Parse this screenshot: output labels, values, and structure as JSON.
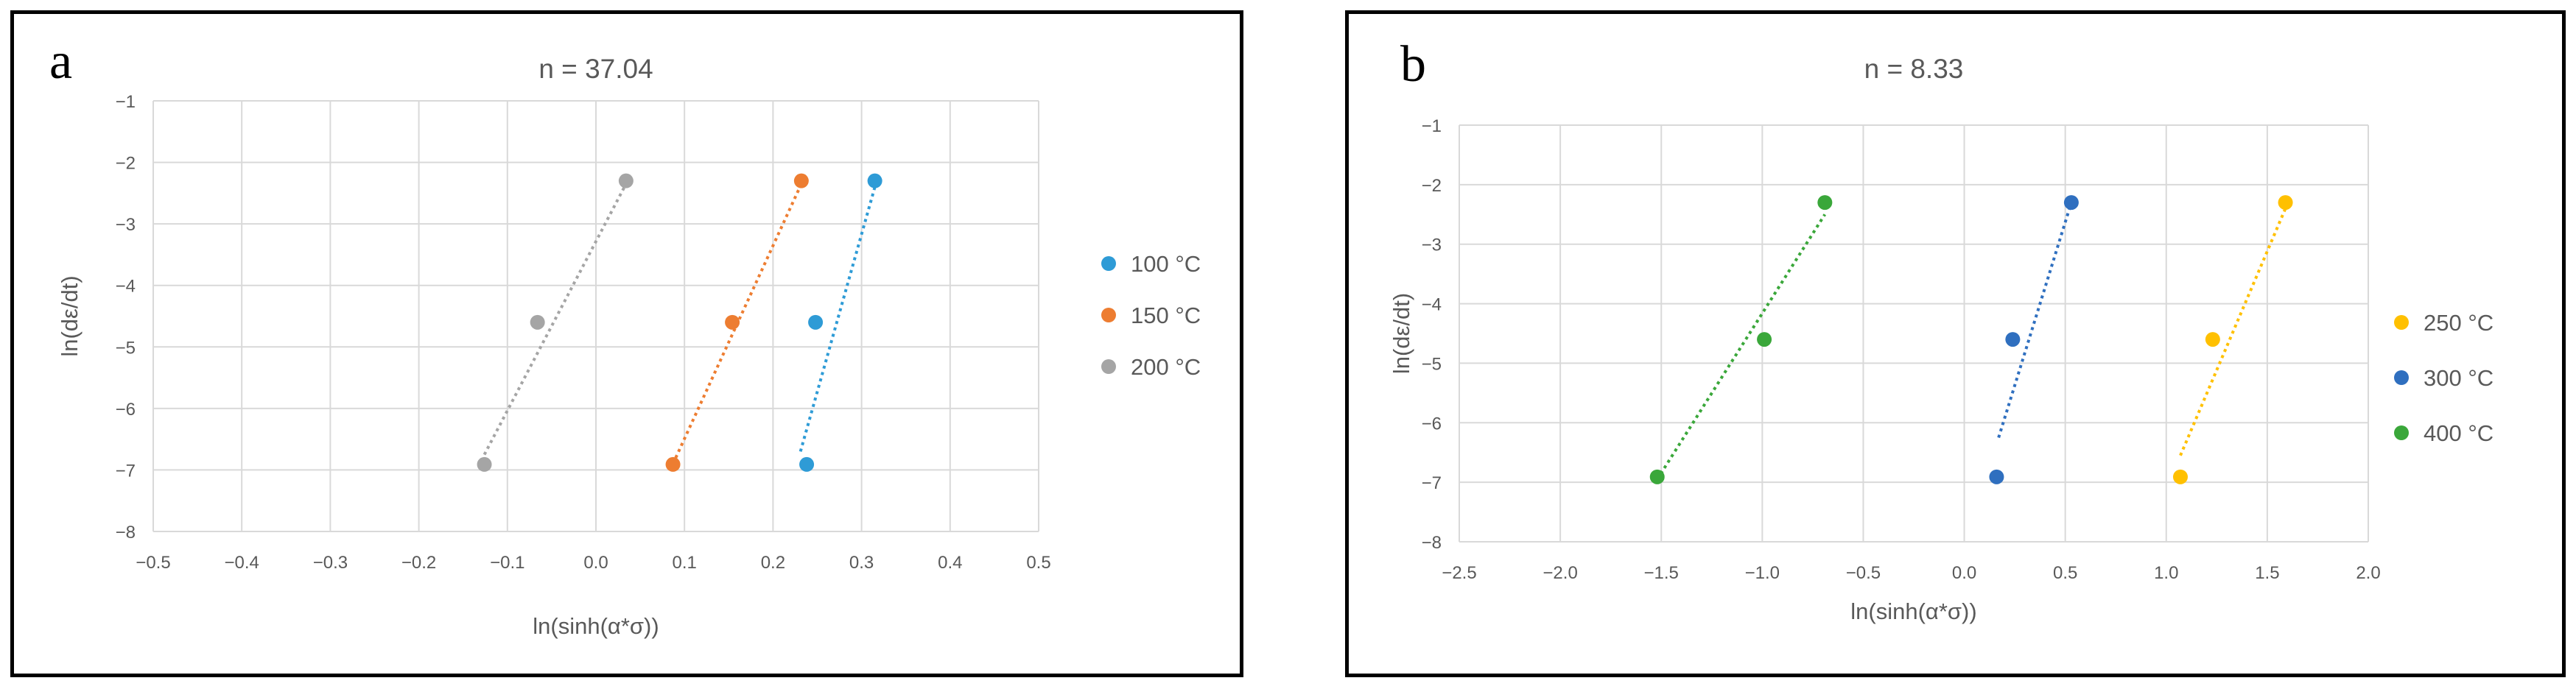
{
  "panels": [
    {
      "label": "a",
      "chart_data": {
        "type": "scatter",
        "title": "n = 37.04",
        "xlabel": "ln(sinh(α*σ))",
        "ylabel": "ln(dε/dt)",
        "xlim": [
          -0.5,
          0.5
        ],
        "ylim": [
          -8,
          -1
        ],
        "xticks": [
          -0.5,
          -0.4,
          -0.3,
          -0.2,
          -0.1,
          0.0,
          0.1,
          0.2,
          0.3,
          0.4,
          0.5
        ],
        "xtick_labels": [
          "−0.5",
          "−0.4",
          "−0.3",
          "−0.2",
          "−0.1",
          "0.0",
          "0.1",
          "0.2",
          "0.3",
          "0.4",
          "0.5"
        ],
        "yticks": [
          -8,
          -7,
          -6,
          -5,
          -4,
          -3,
          -2,
          -1
        ],
        "ytick_labels": [
          "−8",
          "−7",
          "−6",
          "−5",
          "−4",
          "−3",
          "−2",
          "−1"
        ],
        "grid": true,
        "legend_position": "right",
        "series": [
          {
            "name": "100 °C",
            "color": "#2e9bd6",
            "x": [
              0.238,
              0.248,
              0.315
            ],
            "y": [
              -6.91,
              -4.6,
              -2.3
            ],
            "trendline": {
              "x": [
                0.231,
                0.316
              ],
              "y": [
                -6.7,
                -2.35
              ]
            }
          },
          {
            "name": "150 °C",
            "color": "#ed7d31",
            "x": [
              0.087,
              0.154,
              0.232
            ],
            "y": [
              -6.91,
              -4.6,
              -2.3
            ],
            "trendline": {
              "x": [
                0.087,
                0.232
              ],
              "y": [
                -6.9,
                -2.35
              ]
            }
          },
          {
            "name": "200 °C",
            "color": "#a5a5a5",
            "x": [
              -0.126,
              -0.066,
              0.034
            ],
            "y": [
              -6.91,
              -4.6,
              -2.3
            ],
            "trendline": {
              "x": [
                -0.126,
                0.034
              ],
              "y": [
                -6.75,
                -2.35
              ]
            }
          }
        ]
      }
    },
    {
      "label": "b",
      "chart_data": {
        "type": "scatter",
        "title": "n = 8.33",
        "xlabel": "ln(sinh(α*σ))",
        "ylabel": "ln(dε/dt)",
        "xlim": [
          -2.5,
          2.0
        ],
        "ylim": [
          -8,
          -1
        ],
        "xticks": [
          -2.5,
          -2.0,
          -1.5,
          -1.0,
          -0.5,
          0.0,
          0.5,
          1.0,
          1.5,
          2.0
        ],
        "xtick_labels": [
          "−2.5",
          "−2.0",
          "−1.5",
          "−1.0",
          "−0.5",
          "0.0",
          "0.5",
          "1.0",
          "1.5",
          "2.0"
        ],
        "yticks": [
          -8,
          -7,
          -6,
          -5,
          -4,
          -3,
          -2,
          -1
        ],
        "ytick_labels": [
          "−8",
          "−7",
          "−6",
          "−5",
          "−4",
          "−3",
          "−2",
          "−1"
        ],
        "grid": true,
        "legend_position": "right",
        "series": [
          {
            "name": "250 °C",
            "color": "#ffc000",
            "x": [
              1.07,
              1.23,
              1.59
            ],
            "y": [
              -6.91,
              -4.6,
              -2.3
            ],
            "trendline": {
              "x": [
                1.07,
                1.59
              ],
              "y": [
                -6.55,
                -2.4
              ]
            }
          },
          {
            "name": "300 °C",
            "color": "#2f6fbf",
            "x": [
              0.16,
              0.24,
              0.53
            ],
            "y": [
              -6.91,
              -4.6,
              -2.3
            ],
            "trendline": {
              "x": [
                0.17,
                0.53
              ],
              "y": [
                -6.25,
                -2.3
              ]
            }
          },
          {
            "name": "400 °C",
            "color": "#3aa73a",
            "x": [
              -1.52,
              -0.99,
              -0.69
            ],
            "y": [
              -6.91,
              -4.6,
              -2.3
            ],
            "trendline": {
              "x": [
                -1.52,
                -0.69
              ],
              "y": [
                -6.95,
                -2.5
              ]
            }
          }
        ]
      }
    }
  ]
}
